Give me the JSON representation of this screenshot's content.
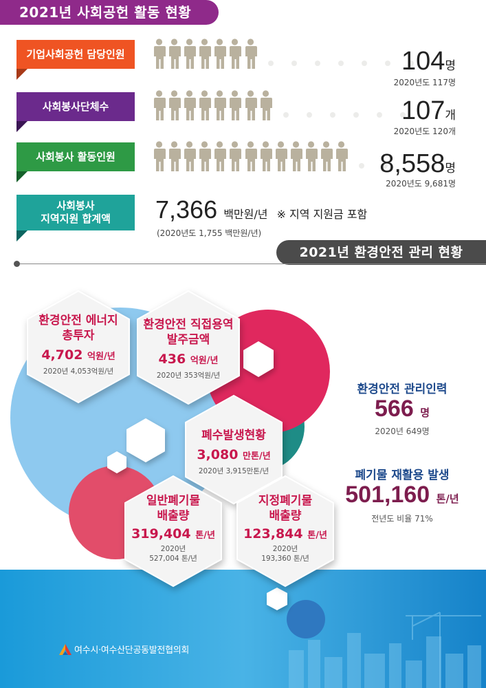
{
  "social": {
    "title": "2021년 사회공헌 활동 현황",
    "rows": [
      {
        "label": "기업사회공헌 담당인원",
        "value": "104",
        "unit": "명",
        "prev": "2020년도 117명",
        "color": "#ef5423",
        "fold": "#a83a18",
        "people": 7
      },
      {
        "label": "사회봉사단체수",
        "value": "107",
        "unit": "개",
        "prev": "2020년도 120개",
        "color": "#6b2a8c",
        "fold": "#3a1554",
        "people": 8
      },
      {
        "label": "사회봉사 활동인원",
        "value": "8,558",
        "unit": "명",
        "prev": "2020년도 9,681명",
        "color": "#2e9a45",
        "fold": "#15602a",
        "people": 13
      },
      {
        "label": "사회봉사\n지역지원 합계액",
        "value": "7,366",
        "unit": "백만원/년",
        "note": "※ 지역 지원금 포함",
        "prev": "(2020년도 1,755 백만원/년)",
        "color": "#1fa39a",
        "fold": "#0c6560"
      }
    ]
  },
  "env": {
    "title": "2021년 환경안전 관리 현황",
    "hexes": [
      {
        "title_lines": [
          "환경안전 에너지",
          "총투자"
        ],
        "value": "4,702",
        "unit": "억원/년",
        "prev_lines": [
          "2020년 4,053억원/년"
        ]
      },
      {
        "title_lines": [
          "환경안전 직접용역",
          "발주금액"
        ],
        "value": "436",
        "unit": "억원/년",
        "prev_lines": [
          "2020년 353억원/년"
        ]
      },
      {
        "title_lines": [
          "폐수발생현황"
        ],
        "value": "3,080",
        "unit": "만톤/년",
        "prev_lines": [
          "2020년 3,915만톤/년"
        ]
      },
      {
        "title_lines": [
          "일반폐기물",
          "배출량"
        ],
        "value": "319,404",
        "unit": "톤/년",
        "prev_lines": [
          "2020년",
          "527,004 톤/년"
        ]
      },
      {
        "title_lines": [
          "지정폐기물",
          "배출량"
        ],
        "value": "123,844",
        "unit": "톤/년",
        "prev_lines": [
          "2020년",
          "193,360 톤/년"
        ]
      }
    ],
    "staff": {
      "title": "환경안전 관리인력",
      "value": "566",
      "unit": "명",
      "prev": "2020년 649명"
    },
    "recycle": {
      "title": "폐기물 재활용 발생",
      "value": "501,160",
      "unit": "톤/년",
      "prev": "전년도 비율 71%"
    }
  },
  "footer": {
    "org": "여수시·여수산단공동발전협의회"
  },
  "colors": {
    "purple": "#8f2a8a",
    "accent_red": "#c8174d",
    "navy": "#1e4a8c",
    "wine": "#7d1d4e",
    "sky": "#8ac7ef",
    "teal": "#1e8c86",
    "pink": "#e0285e"
  }
}
